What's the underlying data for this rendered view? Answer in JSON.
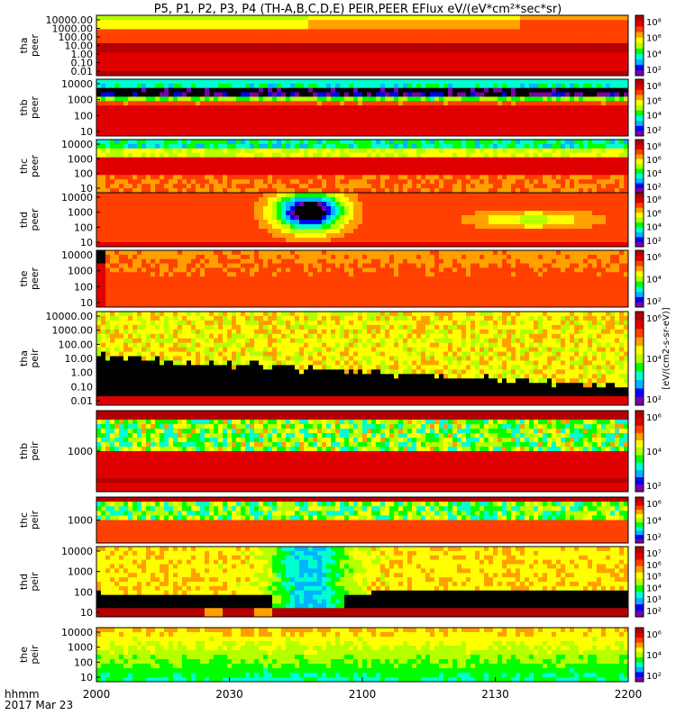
{
  "title": "P5, P1, P2, P3, P4 (TH-A,B,C,D,E) PEIR,PEER EFlux eV/(eV*cm²*sec*sr)",
  "footer": {
    "label1": "hhmm",
    "label2": "2017 Mar 23"
  },
  "colorbar_unit": "[eV/(cm2-s-sr-eV)]",
  "colormap": [
    "#7a00a8",
    "#0000ff",
    "#00b4ff",
    "#00ffd0",
    "#00ff00",
    "#b4ff00",
    "#ffff00",
    "#ffa000",
    "#ff4000",
    "#e00000",
    "#b40000"
  ],
  "chart_data": {
    "type": "heatmap",
    "x_ticks": [
      "2000",
      "2030",
      "2100",
      "2130",
      "2200"
    ],
    "x_range": [
      "2000",
      "2200"
    ],
    "panels": [
      {
        "id": "tha-peer",
        "label1": "tha",
        "label2": "peer",
        "y_ticks": [
          "10000.00",
          "1000.00",
          "100.00",
          "10.00",
          "1.00",
          "0.10",
          "0.01"
        ],
        "cb_ticks": [
          "10⁸",
          "10⁶",
          "10⁴",
          "10²"
        ],
        "pattern": "tha-peer"
      },
      {
        "id": "thb-peer",
        "label1": "thb",
        "label2": "peer",
        "y_ticks": [
          "10000",
          "1000",
          "100",
          "10"
        ],
        "cb_ticks": [
          "10⁸",
          "10⁶",
          "10⁴",
          "10²"
        ],
        "pattern": "thb-peer"
      },
      {
        "id": "thc-peer",
        "label1": "thc",
        "label2": "peer",
        "y_ticks": [
          "10000",
          "1000",
          "100",
          "10"
        ],
        "cb_ticks": [
          "10⁸",
          "10⁶",
          "10⁴",
          "10²"
        ],
        "pattern": "thc-peer"
      },
      {
        "id": "thd-peer",
        "label1": "thd",
        "label2": "peer",
        "y_ticks": [
          "10000",
          "1000",
          "100",
          "10"
        ],
        "cb_ticks": [
          "10⁸",
          "10⁶",
          "10⁴",
          "10²"
        ],
        "pattern": "thd-peer"
      },
      {
        "id": "the-peer",
        "label1": "the",
        "label2": "peer",
        "y_ticks": [
          "10000",
          "1000",
          "100",
          "10"
        ],
        "cb_ticks": [
          "10⁶",
          "10⁴",
          "10²"
        ],
        "pattern": "the-peer"
      },
      {
        "id": "tha-peir",
        "label1": "tha",
        "label2": "peir",
        "y_ticks": [
          "10000.00",
          "1000.00",
          "100.00",
          "10.00",
          "1.00",
          "0.10",
          "0.01"
        ],
        "cb_ticks": [
          "10⁶",
          "10⁴",
          "10²"
        ],
        "pattern": "tha-peir"
      },
      {
        "id": "thb-peir",
        "label1": "thb",
        "label2": "peir",
        "y_ticks": [
          "1000"
        ],
        "cb_ticks": [
          "10⁶",
          "10⁴",
          "10²"
        ],
        "pattern": "thb-peir"
      },
      {
        "id": "thc-peir",
        "label1": "thc",
        "label2": "peir",
        "y_ticks": [
          "1000"
        ],
        "cb_ticks": [
          "10⁶",
          "10⁴",
          "10²"
        ],
        "pattern": "thc-peir"
      },
      {
        "id": "thd-peir",
        "label1": "thd",
        "label2": "peir",
        "y_ticks": [
          "10000",
          "1000",
          "100",
          "10"
        ],
        "cb_ticks": [
          "10⁷",
          "10⁶",
          "10⁵",
          "10⁴",
          "10³",
          "10²"
        ],
        "pattern": "thd-peir"
      },
      {
        "id": "the-peir",
        "label1": "the",
        "label2": "peir",
        "y_ticks": [
          "10000",
          "1000",
          "100",
          "10"
        ],
        "cb_ticks": [
          "10⁶",
          "10⁴",
          "10²"
        ],
        "pattern": "the-peir"
      }
    ]
  }
}
